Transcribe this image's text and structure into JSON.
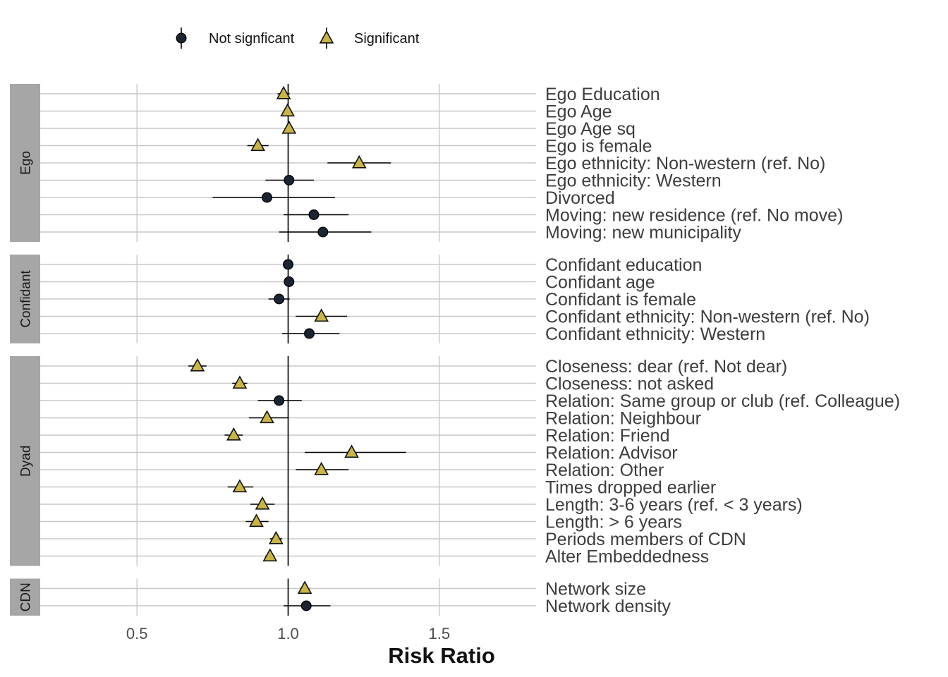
{
  "chart_data": {
    "type": "scatter",
    "subtype": "forest-plot",
    "title": "",
    "xlabel": "Risk Ratio",
    "ylabel": "",
    "xlim": [
      0.18,
      1.82
    ],
    "x_ticks": [
      0.5,
      1.0,
      1.5
    ],
    "x_tick_labels": [
      "0.5",
      "1.0",
      "1.5"
    ],
    "reference_line": 1.0,
    "grid": true,
    "legend": {
      "placement": "top-left",
      "items": [
        {
          "key": "not_significant",
          "label": "Not signficant",
          "shape": "circle",
          "color": "#1b2433"
        },
        {
          "key": "significant",
          "label": "Significant",
          "shape": "triangle",
          "color": "#c9b544"
        }
      ]
    },
    "colors": {
      "not_significant": "#1b2433",
      "significant": "#c9b544",
      "strip": "#a6a6a6",
      "grid": "#c8c8c8"
    },
    "panels": [
      {
        "name": "Ego",
        "rows": [
          {
            "label": "Ego Education",
            "estimate": 0.985,
            "low": 0.965,
            "high": 1.005,
            "significant": true
          },
          {
            "label": "Ego Age",
            "estimate": 0.998,
            "low": 0.985,
            "high": 1.01,
            "significant": true
          },
          {
            "label": "Ego Age sq",
            "estimate": 1.003,
            "low": 0.995,
            "high": 1.01,
            "significant": true
          },
          {
            "label": "Ego is female",
            "estimate": 0.9,
            "low": 0.865,
            "high": 0.935,
            "significant": true
          },
          {
            "label": "Ego ethnicity: Non-western (ref. No)",
            "estimate": 1.235,
            "low": 1.13,
            "high": 1.34,
            "significant": true
          },
          {
            "label": "Ego ethnicity: Western",
            "estimate": 1.003,
            "low": 0.925,
            "high": 1.085,
            "significant": false
          },
          {
            "label": "Divorced",
            "estimate": 0.93,
            "low": 0.75,
            "high": 1.155,
            "significant": false
          },
          {
            "label": "Moving: new residence (ref. No move)",
            "estimate": 1.085,
            "low": 0.985,
            "high": 1.2,
            "significant": false
          },
          {
            "label": "Moving: new municipality",
            "estimate": 1.115,
            "low": 0.97,
            "high": 1.275,
            "significant": false
          }
        ]
      },
      {
        "name": "Confidant",
        "rows": [
          {
            "label": "Confidant education",
            "estimate": 1.0,
            "low": 0.99,
            "high": 1.01,
            "significant": false
          },
          {
            "label": "Confidant age",
            "estimate": 1.003,
            "low": 0.995,
            "high": 1.01,
            "significant": false
          },
          {
            "label": "Confidant is female",
            "estimate": 0.97,
            "low": 0.935,
            "high": 1.005,
            "significant": false
          },
          {
            "label": "Confidant ethnicity: Non-western (ref. No)",
            "estimate": 1.11,
            "low": 1.025,
            "high": 1.195,
            "significant": true
          },
          {
            "label": "Confidant ethnicity: Western",
            "estimate": 1.07,
            "low": 0.98,
            "high": 1.17,
            "significant": false
          }
        ]
      },
      {
        "name": "Dyad",
        "rows": [
          {
            "label": "Closeness: dear (ref. Not dear)",
            "estimate": 0.7,
            "low": 0.67,
            "high": 0.73,
            "significant": true
          },
          {
            "label": "Closeness: not asked",
            "estimate": 0.84,
            "low": 0.815,
            "high": 0.865,
            "significant": true
          },
          {
            "label": "Relation: Same group or club (ref. Colleague)",
            "estimate": 0.97,
            "low": 0.9,
            "high": 1.045,
            "significant": false
          },
          {
            "label": "Relation: Neighbour",
            "estimate": 0.93,
            "low": 0.87,
            "high": 1.0,
            "significant": true
          },
          {
            "label": "Relation: Friend",
            "estimate": 0.82,
            "low": 0.79,
            "high": 0.85,
            "significant": true
          },
          {
            "label": "Relation: Advisor",
            "estimate": 1.21,
            "low": 1.055,
            "high": 1.39,
            "significant": true
          },
          {
            "label": "Relation: Other",
            "estimate": 1.11,
            "low": 1.025,
            "high": 1.2,
            "significant": true
          },
          {
            "label": "Times dropped earlier",
            "estimate": 0.84,
            "low": 0.8,
            "high": 0.885,
            "significant": true
          },
          {
            "label": "Length: 3-6 years (ref. < 3 years)",
            "estimate": 0.915,
            "low": 0.875,
            "high": 0.955,
            "significant": true
          },
          {
            "label": "Length: > 6 years",
            "estimate": 0.895,
            "low": 0.86,
            "high": 0.935,
            "significant": true
          },
          {
            "label": "Periods members of CDN",
            "estimate": 0.96,
            "low": 0.94,
            "high": 0.98,
            "significant": true
          },
          {
            "label": "Alter Embeddedness",
            "estimate": 0.94,
            "low": 0.925,
            "high": 0.955,
            "significant": true
          }
        ]
      },
      {
        "name": "CDN",
        "rows": [
          {
            "label": "Network size",
            "estimate": 1.055,
            "low": 1.04,
            "high": 1.07,
            "significant": true
          },
          {
            "label": "Network density",
            "estimate": 1.06,
            "low": 0.985,
            "high": 1.14,
            "significant": false
          }
        ]
      }
    ]
  }
}
